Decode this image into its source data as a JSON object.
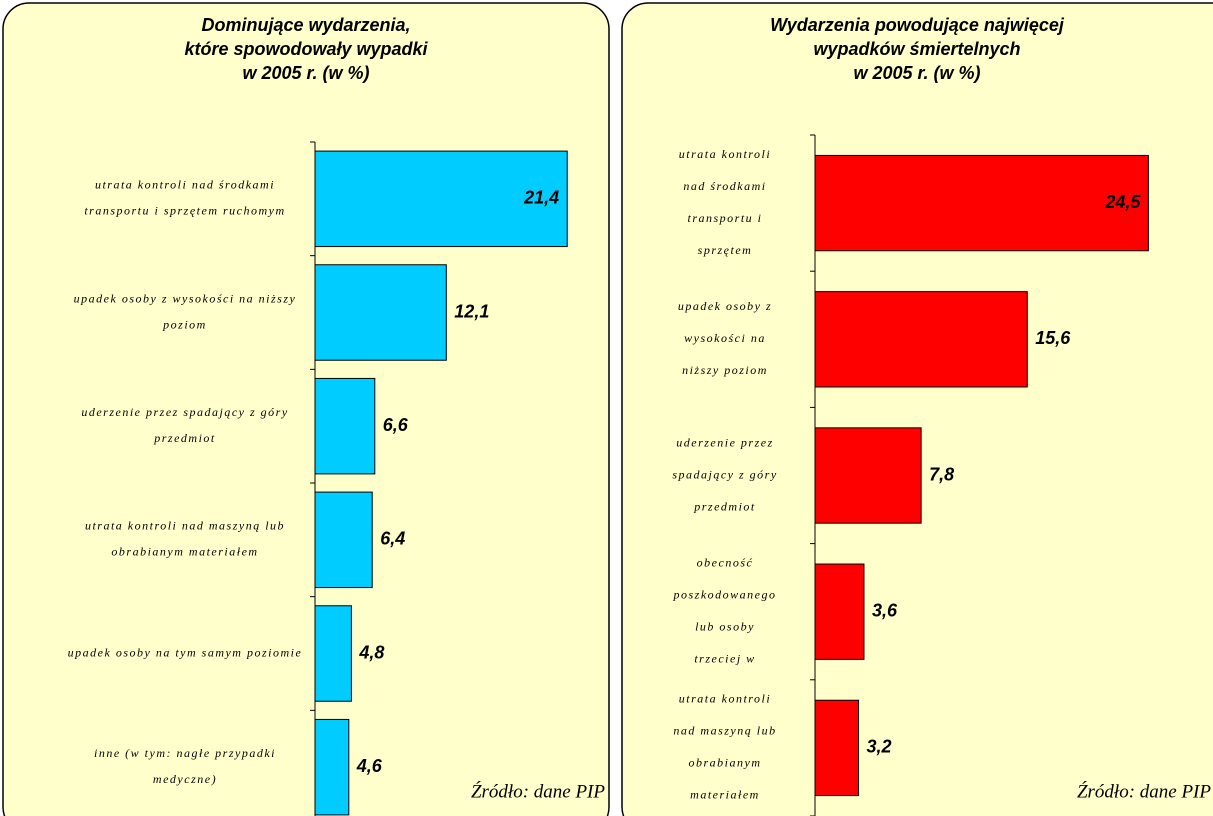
{
  "chart_data": [
    {
      "type": "bar",
      "orientation": "horizontal",
      "title": [
        "Dominujące wydarzenia,",
        "które spowodowały wypadki",
        "w 2005 r. (w %)"
      ],
      "categories": [
        [
          "utrata kontroli nad środkami",
          "transportu i sprzętem ruchomym"
        ],
        [
          "upadek osoby z wysokości na niższy",
          "poziom"
        ],
        [
          "uderzenie przez spadający z góry",
          "przedmiot"
        ],
        [
          "utrata kontroli nad maszyną lub",
          "obrabianym materiałem"
        ],
        [
          "upadek osoby na tym samym poziomie"
        ],
        [
          "inne (w tym: nagłe przypadki",
          "medyczne)"
        ]
      ],
      "values": [
        21.4,
        12.1,
        6.6,
        6.4,
        4.8,
        4.6
      ],
      "value_labels": [
        "21,4",
        "12,1",
        "6,6",
        "6,4",
        "4,8",
        "4,6"
      ],
      "color": "#00ccff",
      "xlim": [
        2,
        24
      ],
      "source": "Źródło: dane PIP"
    },
    {
      "type": "bar",
      "orientation": "horizontal",
      "title": [
        "Wydarzenia powodujące najwięcej",
        "wypadków śmiertelnych",
        "w 2005 r. (w %)"
      ],
      "categories": [
        [
          "utrata kontroli",
          "nad środkami",
          "transportu i",
          "sprzętem"
        ],
        [
          "upadek osoby z",
          "wysokości na",
          "niższy poziom"
        ],
        [
          "uderzenie przez",
          "spadający z góry",
          "przedmiot"
        ],
        [
          "obecność",
          "poszkodowanego",
          "lub osoby",
          "trzeciej w"
        ],
        [
          "utrata kontroli",
          "nad maszyną lub",
          "obrabianym",
          "materiałem"
        ]
      ],
      "values": [
        24.5,
        15.6,
        7.8,
        3.6,
        3.2
      ],
      "value_labels": [
        "24,5",
        "15,6",
        "7,8",
        "3,6",
        "3,2"
      ],
      "color": "#ff0000",
      "xlim": [
        0,
        28
      ],
      "source": "Źródło: dane PIP"
    }
  ]
}
